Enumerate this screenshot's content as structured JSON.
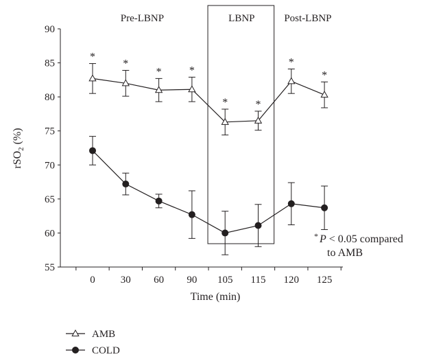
{
  "chart_data": {
    "type": "line",
    "xlabel": "Time (min)",
    "ylabel_main": "rSO",
    "ylabel_sub": "2",
    "ylabel_unit": " (%)",
    "categories": [
      "0",
      "30",
      "60",
      "90",
      "105",
      "115",
      "120",
      "125"
    ],
    "ylim": [
      55,
      90
    ],
    "yticks": [
      55,
      60,
      65,
      70,
      75,
      80,
      85,
      90
    ],
    "grid": false,
    "legend_position": "bottom-left",
    "phases": [
      {
        "label": "Pre-LBNP",
        "range": [
          0,
          3
        ]
      },
      {
        "label": "LBNP",
        "range": [
          4,
          5
        ],
        "boxed": true
      },
      {
        "label": "Post-LBNP",
        "range": [
          6,
          7
        ]
      }
    ],
    "series": [
      {
        "name": "AMB",
        "marker": "open-triangle",
        "values": [
          82.7,
          82.0,
          81.0,
          81.1,
          76.3,
          76.5,
          82.3,
          80.3
        ],
        "error": [
          2.2,
          1.9,
          1.7,
          1.8,
          1.9,
          1.4,
          1.8,
          1.9
        ],
        "significant": [
          true,
          true,
          true,
          true,
          true,
          true,
          true,
          true
        ]
      },
      {
        "name": "COLD",
        "marker": "filled-circle",
        "values": [
          72.1,
          67.2,
          64.7,
          62.7,
          60.0,
          61.1,
          64.3,
          63.7
        ],
        "error": [
          2.1,
          1.6,
          1.0,
          3.5,
          3.2,
          3.1,
          3.1,
          3.2
        ]
      }
    ],
    "annotation": {
      "asterisk": "*",
      "p_symbol": "P",
      "line1_rest": " < 0.05 compared",
      "line2": "to AMB"
    },
    "significance_marker": "*"
  }
}
